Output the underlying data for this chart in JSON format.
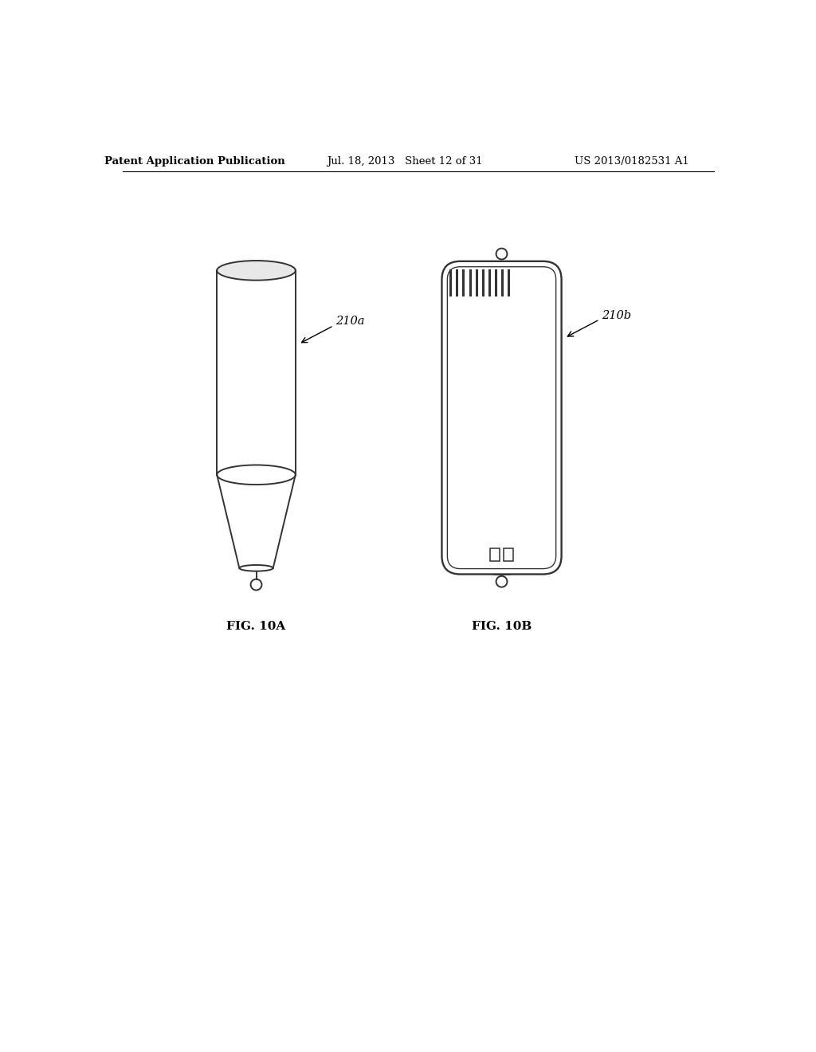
{
  "background_color": "#ffffff",
  "header_left": "Patent Application Publication",
  "header_center": "Jul. 18, 2013   Sheet 12 of 31",
  "header_right": "US 2013/0182531 A1",
  "header_fontsize": 9.5,
  "label_210a": "210a",
  "label_210b": "210b",
  "fig_label_10a": "FIG. 10A",
  "fig_label_10b": "FIG. 10B",
  "fig_label_fontsize": 11,
  "ref_label_fontsize": 10.5,
  "line_color": "#333333",
  "line_width": 1.4
}
